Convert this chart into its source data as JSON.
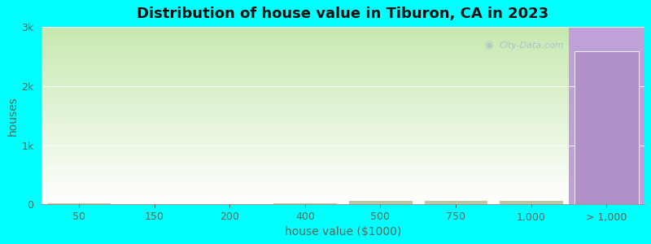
{
  "title": "Distribution of house value in Tiburon, CA in 2023",
  "xlabel": "house value ($1000)",
  "ylabel": "houses",
  "background_color": "#00FFFF",
  "categories": [
    "50",
    "150",
    "200",
    "400",
    "500",
    "750",
    "1,000",
    "> 1,000"
  ],
  "bar_values": [
    40,
    15,
    15,
    40,
    80,
    80,
    80,
    2600
  ],
  "bar_color_green": "#b8c8a0",
  "bar_color_purple": "#b090c8",
  "ylim": [
    0,
    3000
  ],
  "yticks": [
    0,
    1000,
    2000,
    3000
  ],
  "ytick_labels": [
    "0",
    "1k",
    "2k",
    "3k"
  ],
  "title_fontsize": 13,
  "axis_label_fontsize": 10,
  "tick_fontsize": 9,
  "watermark_text": "City-Data.com",
  "num_green_bars": 7,
  "purple_bar_value": 2600,
  "green_bg_top": "#ffffff",
  "green_bg_bottom": "#c8e8b0",
  "purple_bg": "#c0a0d8"
}
